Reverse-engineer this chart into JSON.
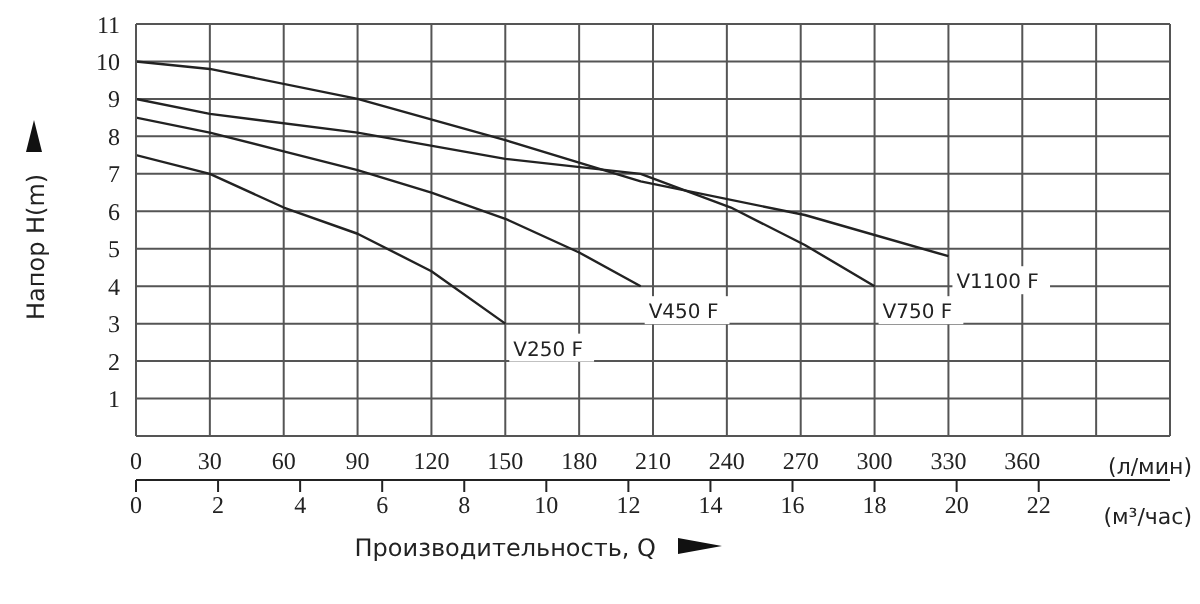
{
  "chart_data": {
    "type": "line",
    "xlabel": "Производительность, Q",
    "ylabel": "Напор H(m)",
    "x2label": "(л/мин)",
    "annotations": [
      "(м³/час)"
    ],
    "xlim": [
      0,
      25.2
    ],
    "xticks": [
      0,
      2,
      4,
      6,
      8,
      10,
      12,
      14,
      16,
      18,
      20,
      22
    ],
    "x2lim": [
      0,
      420
    ],
    "x2ticks": [
      0,
      30,
      60,
      90,
      120,
      150,
      180,
      210,
      240,
      270,
      300,
      330,
      360,
      {
        "value": 390,
        "label": null
      },
      {
        "value": 420,
        "label": null
      }
    ],
    "ylim": [
      0,
      11
    ],
    "yticks": [
      1,
      2,
      3,
      4,
      5,
      6,
      7,
      8,
      9,
      10,
      11
    ],
    "grid": true,
    "marker": "none",
    "line_style": "solid",
    "series": [
      {
        "name": "V250 F",
        "color": "#222222",
        "x": [
          0,
          1.8,
          3.6,
          5.4,
          7.2,
          9
        ],
        "values": [
          7.5,
          7.0,
          6.1,
          5.4,
          4.4,
          3.0
        ]
      },
      {
        "name": "V450 F",
        "color": "#222222",
        "x": [
          0,
          1.8,
          3.6,
          5.4,
          7.2,
          9,
          10.8,
          12.3
        ],
        "values": [
          8.5,
          8.1,
          7.6,
          7.1,
          6.5,
          5.8,
          4.9,
          4.0
        ]
      },
      {
        "name": "V750 F",
        "color": "#222222",
        "x": [
          0,
          1.8,
          5.4,
          9,
          12.3,
          14.5,
          16.3,
          18
        ],
        "values": [
          9.0,
          8.6,
          8.1,
          7.4,
          7.0,
          6.1,
          5.1,
          4.0
        ]
      },
      {
        "name": "V1100 F",
        "color": "#222222",
        "x": [
          0,
          1.8,
          5.4,
          9,
          12.3,
          16.3,
          19.8
        ],
        "values": [
          10.0,
          9.8,
          9.0,
          7.9,
          6.8,
          5.9,
          4.8
        ]
      }
    ]
  }
}
